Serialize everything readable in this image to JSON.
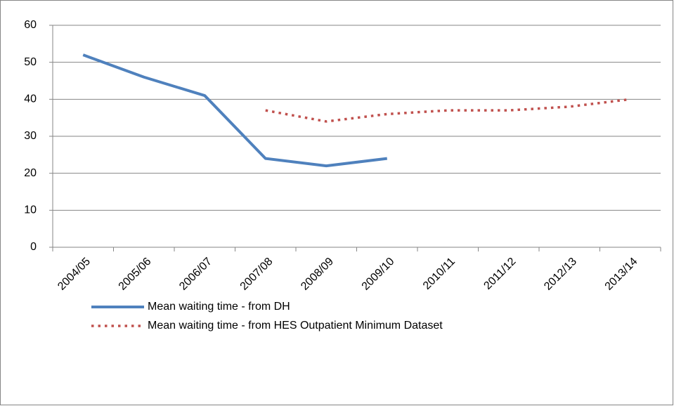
{
  "chart_data": {
    "type": "line",
    "categories": [
      "2004/05",
      "2005/06",
      "2006/07",
      "2007/08",
      "2008/09",
      "2009/10",
      "2010/11",
      "2011/12",
      "2012/13",
      "2013/14"
    ],
    "series": [
      {
        "name": "Mean waiting time - from DH",
        "color": "#4f81bd",
        "dash": "solid",
        "values": [
          52,
          46,
          41,
          24,
          22,
          24,
          null,
          null,
          null,
          null
        ]
      },
      {
        "name": "Mean waiting time - from HES Outpatient Minimum Dataset",
        "color": "#c0504d",
        "dash": "dotted",
        "values": [
          null,
          null,
          null,
          37,
          34,
          36,
          37,
          37,
          38,
          40
        ]
      }
    ],
    "ylim": [
      0,
      60
    ],
    "yticks": [
      0,
      10,
      20,
      30,
      40,
      50,
      60
    ],
    "grid": true
  }
}
